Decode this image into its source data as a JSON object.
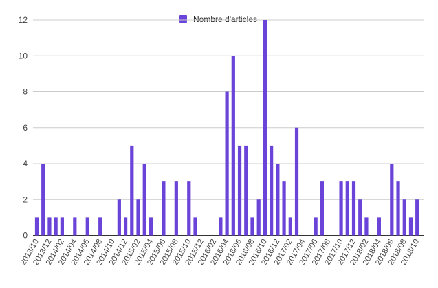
{
  "chart_data": {
    "type": "bar",
    "legend": {
      "label": "Nombre d'articles",
      "position": "top"
    },
    "color": "#6a43d8",
    "ylim": [
      0,
      12
    ],
    "yticks": [
      0,
      2,
      4,
      6,
      8,
      10,
      12
    ],
    "grid": true,
    "categories": [
      "2013/10",
      "2013/11",
      "2013/12",
      "2014/01",
      "2014/02",
      "2014/03",
      "2014/04",
      "2014/05",
      "2014/06",
      "2014/07",
      "2014/08",
      "2014/09",
      "2014/10",
      "2014/11",
      "2014/12",
      "2015/01",
      "2015/02",
      "2015/03",
      "2015/04",
      "2015/05",
      "2015/06",
      "2015/07",
      "2015/08",
      "2015/09",
      "2015/10",
      "2015/11",
      "2015/12",
      "2016/01",
      "2016/02",
      "2016/03",
      "2016/04",
      "2016/05",
      "2016/06",
      "2016/07",
      "2016/08",
      "2016/09",
      "2016/10",
      "2016/11",
      "2016/12",
      "2017/01",
      "2017/02",
      "2017/03",
      "2017/04",
      "2017/05",
      "2017/06",
      "2017/07",
      "2017/08",
      "2017/09",
      "2017/10",
      "2017/11",
      "2017/12",
      "2018/01",
      "2018/02",
      "2018/03",
      "2018/04",
      "2018/05",
      "2018/06",
      "2018/07",
      "2018/08",
      "2018/09",
      "2018/10"
    ],
    "tick_labels": [
      "2013/10",
      "2013/12",
      "2014/02",
      "2014/04",
      "2014/06",
      "2014/08",
      "2014/10",
      "2014/12",
      "2015/02",
      "2015/04",
      "2015/06",
      "2015/08",
      "2015/10",
      "2015/12",
      "2016/02",
      "2016/04",
      "2016/06",
      "2016/08",
      "2016/10",
      "2016/12",
      "2017/02",
      "2017/04",
      "2017/06",
      "2017/08",
      "2017/10",
      "2017/12",
      "2018/02",
      "2018/04",
      "2018/06",
      "2018/08",
      "2018/10"
    ],
    "series": [
      {
        "name": "Nombre d'articles",
        "values": [
          1,
          4,
          1,
          1,
          1,
          0,
          1,
          0,
          1,
          0,
          1,
          0,
          0,
          2,
          1,
          5,
          2,
          4,
          1,
          0,
          3,
          0,
          3,
          0,
          3,
          1,
          0,
          0,
          0,
          1,
          8,
          10,
          5,
          5,
          1,
          2,
          12,
          5,
          4,
          3,
          1,
          6,
          0,
          0,
          1,
          3,
          0,
          0,
          3,
          3,
          3,
          2,
          1,
          0,
          1,
          0,
          4,
          3,
          2,
          1,
          2
        ]
      }
    ]
  }
}
